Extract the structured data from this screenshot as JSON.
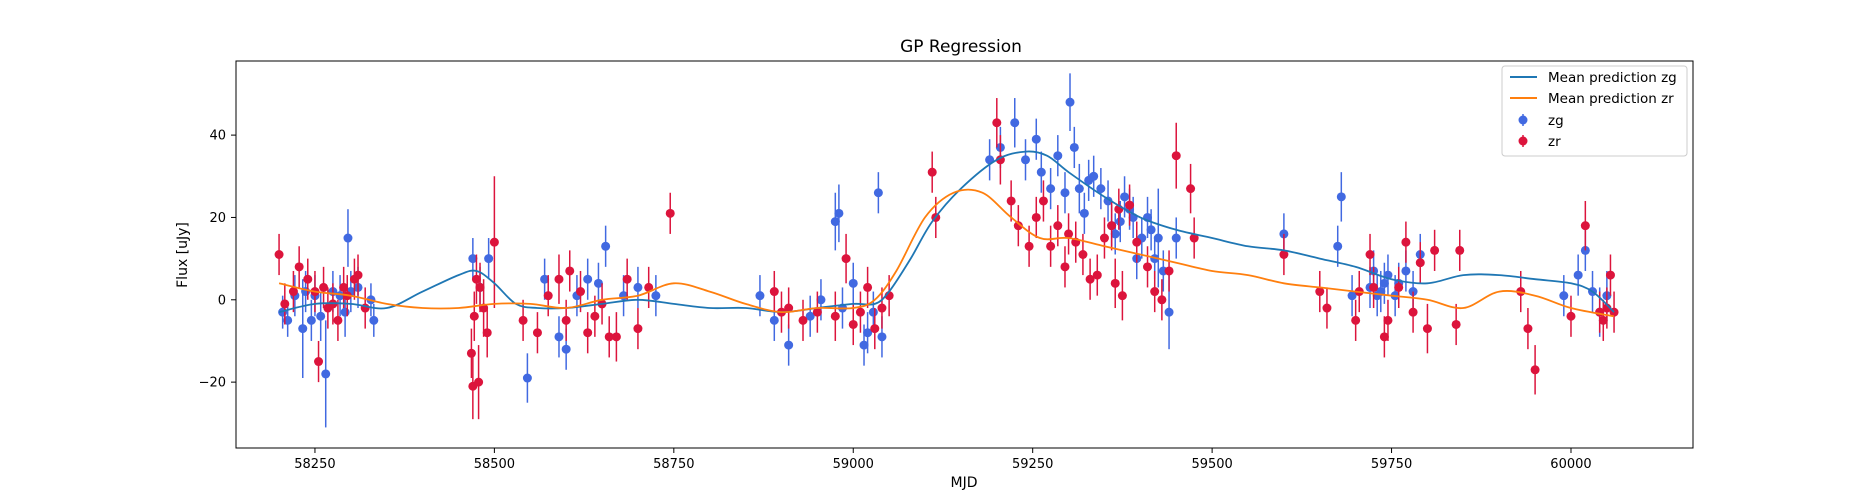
{
  "chart_data": {
    "type": "scatter",
    "title": "GP Regression",
    "xlabel": "MJD",
    "ylabel": "Flux [uJy]",
    "xlim": [
      58140,
      60170
    ],
    "ylim": [
      -36,
      58
    ],
    "xticks": [
      58250,
      58500,
      58750,
      59000,
      59250,
      59500,
      59750,
      60000
    ],
    "yticks": [
      -20,
      0,
      20,
      40
    ],
    "grid": false,
    "legend_position": "top-right",
    "legend": [
      "Mean prediction zg",
      "Mean prediction zr",
      "zg",
      "zr"
    ],
    "colors": {
      "zg_line": "#1f77b4",
      "zr_line": "#ff7f0e",
      "zg_points": "#4169e1",
      "zr_points": "#dc143c"
    },
    "lines": [
      {
        "name": "Mean prediction zg",
        "x": [
          58200,
          58250,
          58300,
          58350,
          58400,
          58450,
          58475,
          58500,
          58530,
          58560,
          58600,
          58650,
          58700,
          58750,
          58800,
          58850,
          58900,
          58950,
          59000,
          59030,
          59050,
          59080,
          59110,
          59150,
          59200,
          59240,
          59270,
          59300,
          59350,
          59400,
          59450,
          59500,
          59550,
          59600,
          59650,
          59700,
          59750,
          59800,
          59850,
          59900,
          59950,
          60000,
          60030,
          60060
        ],
        "y": [
          -3,
          -1,
          -1,
          -2,
          2,
          6,
          7,
          4,
          -1,
          -2,
          -2,
          -1,
          0,
          -1,
          -2,
          -2,
          -3,
          -2,
          -1,
          -1,
          2,
          10,
          19,
          27,
          34,
          36,
          35,
          31,
          25,
          20,
          17,
          15,
          13,
          12,
          10,
          8,
          5,
          4,
          6,
          6,
          5,
          4,
          2,
          -3
        ]
      },
      {
        "name": "Mean prediction zr",
        "x": [
          58200,
          58250,
          58300,
          58350,
          58400,
          58450,
          58500,
          58550,
          58600,
          58650,
          58700,
          58750,
          58800,
          58850,
          58900,
          58950,
          59000,
          59030,
          59060,
          59100,
          59140,
          59180,
          59220,
          59260,
          59300,
          59350,
          59400,
          59450,
          59500,
          59550,
          59600,
          59650,
          59700,
          59750,
          59800,
          59850,
          59900,
          59950,
          60000,
          60060
        ],
        "y": [
          4,
          2,
          1,
          -1,
          -2,
          -2,
          -1,
          -1,
          -2,
          0,
          1,
          4,
          2,
          -1,
          -3,
          -2,
          -2,
          0,
          7,
          20,
          26,
          26,
          20,
          15,
          15,
          13,
          11,
          9,
          7,
          6,
          4,
          3,
          2,
          1,
          0,
          -2,
          2,
          1,
          -2,
          -4
        ]
      }
    ],
    "series": [
      {
        "name": "zg",
        "x": [
          58205,
          58212,
          58222,
          58233,
          58237,
          58245,
          58250,
          58258,
          58265,
          58275,
          58285,
          58292,
          58296,
          58300,
          58310,
          58328,
          58332,
          58470,
          58480,
          58492,
          58546,
          58570,
          58590,
          58600,
          58615,
          58630,
          58645,
          58655,
          58680,
          58700,
          58725,
          58870,
          58890,
          58910,
          58940,
          58955,
          58975,
          58980,
          58985,
          59000,
          59015,
          59020,
          59028,
          59035,
          59040,
          59190,
          59205,
          59225,
          59240,
          59255,
          59262,
          59275,
          59285,
          59295,
          59302,
          59308,
          59315,
          59322,
          59328,
          59335,
          59345,
          59355,
          59360,
          59365,
          59372,
          59378,
          59385,
          59390,
          59395,
          59402,
          59410,
          59415,
          59420,
          59425,
          59432,
          59440,
          59450,
          59600,
          59675,
          59680,
          59695,
          59720,
          59725,
          59730,
          59735,
          59740,
          59745,
          59755,
          59760,
          59770,
          59780,
          59790,
          59990,
          60010,
          60020,
          60030,
          60040,
          60050
        ],
        "y": [
          -3,
          -5,
          1,
          -7,
          2,
          -5,
          1,
          -4,
          -18,
          2,
          1,
          -3,
          15,
          2,
          3,
          0,
          -5,
          10,
          3,
          10,
          -19,
          5,
          -9,
          -12,
          1,
          5,
          4,
          13,
          1,
          3,
          1,
          1,
          -5,
          -11,
          -4,
          0,
          19,
          21,
          -2,
          4,
          -11,
          -8,
          -3,
          26,
          -9,
          34,
          37,
          43,
          34,
          39,
          31,
          27,
          35,
          26,
          48,
          37,
          27,
          21,
          29,
          30,
          27,
          24,
          18,
          16,
          19,
          25,
          22,
          20,
          10,
          15,
          20,
          17,
          10,
          15,
          7,
          -3,
          15,
          16,
          13,
          25,
          1,
          3,
          7,
          1,
          2,
          4,
          6,
          1,
          4,
          7,
          2,
          11,
          1,
          6,
          12,
          2,
          -3,
          1
        ],
        "yerr": [
          4,
          4,
          5,
          12,
          5,
          5,
          5,
          6,
          13,
          5,
          5,
          6,
          7,
          5,
          5,
          4,
          4,
          5,
          5,
          5,
          6,
          5,
          5,
          5,
          5,
          5,
          5,
          5,
          5,
          5,
          5,
          5,
          5,
          5,
          5,
          5,
          7,
          7,
          5,
          5,
          5,
          5,
          5,
          5,
          5,
          5,
          5,
          6,
          5,
          5,
          5,
          5,
          5,
          5,
          7,
          5,
          6,
          5,
          5,
          5,
          5,
          5,
          5,
          5,
          5,
          5,
          5,
          5,
          5,
          5,
          5,
          5,
          5,
          12,
          5,
          9,
          5,
          5,
          5,
          6,
          5,
          5,
          5,
          5,
          5,
          5,
          5,
          5,
          5,
          5,
          5,
          5,
          5,
          5,
          5,
          5,
          6,
          6
        ]
      },
      {
        "name": "zr",
        "x": [
          58200,
          58208,
          58220,
          58228,
          58240,
          58250,
          58255,
          58262,
          58268,
          58275,
          58282,
          58290,
          58295,
          58305,
          58310,
          58320,
          58468,
          58470,
          58472,
          58475,
          58478,
          58480,
          58485,
          58490,
          58500,
          58540,
          58560,
          58575,
          58590,
          58600,
          58605,
          58620,
          58630,
          58640,
          58650,
          58660,
          58670,
          58685,
          58700,
          58715,
          58745,
          58890,
          58900,
          58910,
          58930,
          58950,
          58975,
          58990,
          59000,
          59010,
          59020,
          59030,
          59040,
          59050,
          59110,
          59115,
          59200,
          59205,
          59220,
          59230,
          59245,
          59255,
          59265,
          59275,
          59285,
          59295,
          59300,
          59310,
          59320,
          59330,
          59340,
          59350,
          59360,
          59365,
          59370,
          59375,
          59385,
          59395,
          59410,
          59420,
          59430,
          59440,
          59450,
          59470,
          59475,
          59600,
          59650,
          59660,
          59700,
          59705,
          59720,
          59725,
          59740,
          59745,
          59760,
          59770,
          59780,
          59790,
          59800,
          59810,
          59840,
          59845,
          59930,
          59940,
          59950,
          60000,
          60020,
          60040,
          60045,
          60050,
          60055,
          60060
        ],
        "y": [
          11,
          -1,
          2,
          8,
          5,
          2,
          -15,
          3,
          -2,
          -1,
          -5,
          3,
          1,
          5,
          6,
          -2,
          -13,
          -21,
          -4,
          5,
          -20,
          3,
          -2,
          -8,
          14,
          -5,
          -8,
          1,
          5,
          -5,
          7,
          2,
          -8,
          -4,
          -1,
          -9,
          -9,
          5,
          -7,
          3,
          21,
          2,
          -3,
          -2,
          -5,
          -3,
          -4,
          10,
          -6,
          -3,
          3,
          -7,
          -2,
          1,
          31,
          20,
          43,
          34,
          24,
          18,
          13,
          20,
          24,
          13,
          18,
          8,
          16,
          14,
          11,
          5,
          6,
          15,
          18,
          4,
          22,
          1,
          23,
          14,
          8,
          2,
          0,
          7,
          35,
          27,
          15,
          11,
          2,
          -2,
          -5,
          2,
          11,
          3,
          -9,
          -5,
          3,
          14,
          -3,
          9,
          -7,
          12,
          -6,
          12,
          2,
          -7,
          -17,
          -4,
          18,
          -3,
          -5,
          -2,
          6,
          -3
        ],
        "yerr": [
          5,
          5,
          5,
          5,
          5,
          5,
          5,
          5,
          5,
          5,
          5,
          5,
          5,
          5,
          5,
          5,
          6,
          8,
          6,
          6,
          9,
          6,
          7,
          6,
          16,
          5,
          5,
          5,
          6,
          5,
          5,
          5,
          5,
          5,
          5,
          5,
          6,
          5,
          5,
          5,
          5,
          5,
          5,
          5,
          5,
          5,
          6,
          6,
          5,
          5,
          5,
          5,
          5,
          5,
          5,
          5,
          6,
          6,
          5,
          5,
          5,
          5,
          5,
          5,
          5,
          5,
          5,
          5,
          5,
          5,
          5,
          5,
          6,
          6,
          5,
          6,
          5,
          5,
          5,
          5,
          5,
          5,
          8,
          6,
          5,
          5,
          5,
          5,
          5,
          5,
          5,
          5,
          5,
          5,
          5,
          5,
          5,
          5,
          6,
          5,
          5,
          5,
          5,
          5,
          6,
          5,
          6,
          5,
          5,
          5,
          5,
          5
        ]
      }
    ]
  }
}
